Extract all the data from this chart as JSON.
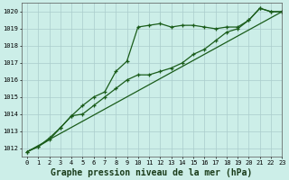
{
  "title": "Graphe pression niveau de la mer (hPa)",
  "background_color": "#cceee8",
  "grid_color": "#aacccc",
  "line_color": "#1a5c1a",
  "xlim": [
    -0.5,
    23
  ],
  "ylim": [
    1011.5,
    1020.5
  ],
  "yticks": [
    1012,
    1013,
    1014,
    1015,
    1016,
    1017,
    1018,
    1019,
    1020
  ],
  "xticks": [
    0,
    1,
    2,
    3,
    4,
    5,
    6,
    7,
    8,
    9,
    10,
    11,
    12,
    13,
    14,
    15,
    16,
    17,
    18,
    19,
    20,
    21,
    22,
    23
  ],
  "series1_marked": {
    "x": [
      0,
      1,
      2,
      3,
      4,
      5,
      6,
      7,
      8,
      9,
      10,
      11,
      12,
      13,
      14,
      15,
      16,
      17,
      18,
      19,
      20,
      21,
      22,
      23
    ],
    "y": [
      1011.8,
      1012.1,
      1012.6,
      1013.2,
      1013.9,
      1014.5,
      1015.0,
      1015.3,
      1016.5,
      1017.1,
      1019.1,
      1019.2,
      1019.3,
      1019.1,
      1019.2,
      1019.2,
      1019.1,
      1019.0,
      1019.1,
      1019.1,
      1019.5,
      1020.2,
      1020.0,
      1020.0
    ]
  },
  "series2_straight": {
    "x": [
      0,
      23
    ],
    "y": [
      1011.8,
      1020.0
    ]
  },
  "series3_marked": {
    "x": [
      0,
      1,
      2,
      3,
      4,
      5,
      6,
      7,
      8,
      9,
      10,
      11,
      12,
      13,
      14,
      15,
      16,
      17,
      18,
      19,
      20,
      21,
      22,
      23
    ],
    "y": [
      1011.8,
      1012.1,
      1012.5,
      1013.2,
      1013.9,
      1014.0,
      1014.5,
      1015.0,
      1015.5,
      1016.0,
      1016.3,
      1016.3,
      1016.5,
      1016.7,
      1017.0,
      1017.5,
      1017.8,
      1018.3,
      1018.8,
      1019.0,
      1019.5,
      1020.2,
      1020.0,
      1020.0
    ]
  },
  "title_fontsize": 7,
  "tick_fontsize": 5
}
